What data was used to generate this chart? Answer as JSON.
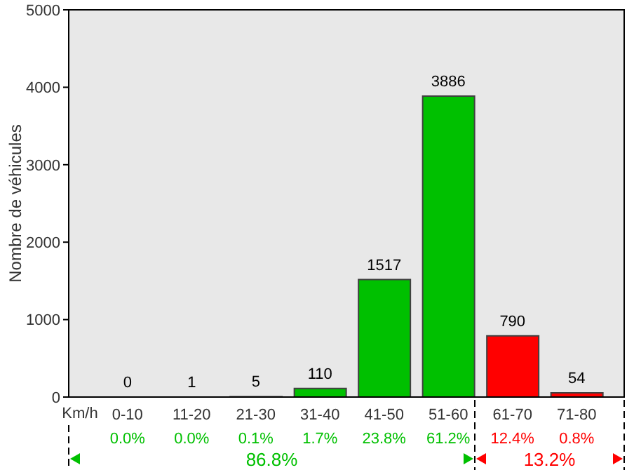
{
  "chart_data": {
    "type": "bar",
    "ylabel": "Nombre de véhicules",
    "categories": [
      "0-10",
      "11-20",
      "21-30",
      "31-40",
      "41-50",
      "51-60",
      "61-70",
      "71-80"
    ],
    "values": [
      0,
      1,
      5,
      110,
      1517,
      3886,
      790,
      54
    ],
    "colors": [
      "#00c000",
      "#00c000",
      "#00c000",
      "#00c000",
      "#00c000",
      "#00c000",
      "#ff0000",
      "#ff0000"
    ],
    "ylim": [
      0,
      5000
    ],
    "yticks": [
      0,
      1000,
      2000,
      3000,
      4000,
      5000
    ],
    "grid": false,
    "data_labels": true,
    "annotations": [
      "Km/h",
      "0.0%",
      "0.0%",
      "0.1%",
      "1.7%",
      "23.8%",
      "61.2%",
      "12.4%",
      "0.8%",
      "86.8%",
      "13.2%"
    ]
  }
}
